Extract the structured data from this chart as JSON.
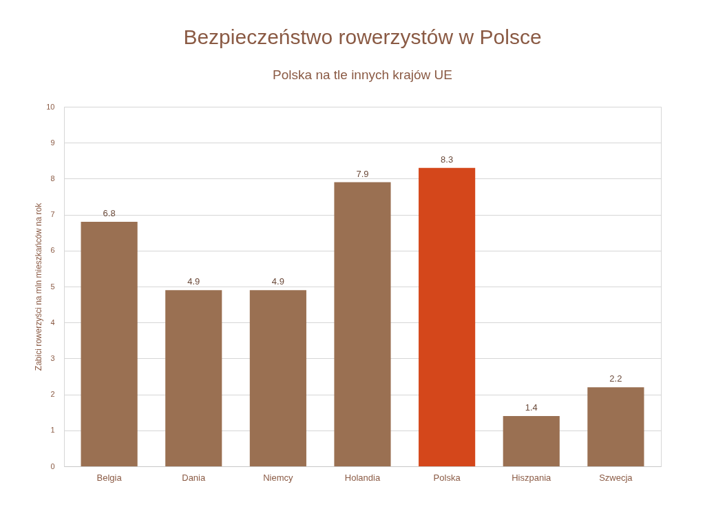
{
  "chart_data": {
    "type": "bar",
    "title": "Bezpieczeństwo rowerzystów w Polsce",
    "subtitle": "Polska na tle innych krajów UE",
    "ylabel": "Zabici rowerzyści na mln mieszkańców na rok",
    "categories": [
      "Belgia",
      "Dania",
      "Niemcy",
      "Holandia",
      "Polska",
      "Hiszpania",
      "Szwecja"
    ],
    "values": [
      6.8,
      4.9,
      4.9,
      7.9,
      8.3,
      1.4,
      2.2
    ],
    "colors": [
      "#9a7052",
      "#9a7052",
      "#9a7052",
      "#9a7052",
      "#d4471b",
      "#9a7052",
      "#9a7052"
    ],
    "ylim": [
      0,
      10
    ],
    "yticks": [
      0,
      1,
      2,
      3,
      4,
      5,
      6,
      7,
      8,
      9,
      10
    ],
    "grid": "y",
    "data_labels": true
  }
}
